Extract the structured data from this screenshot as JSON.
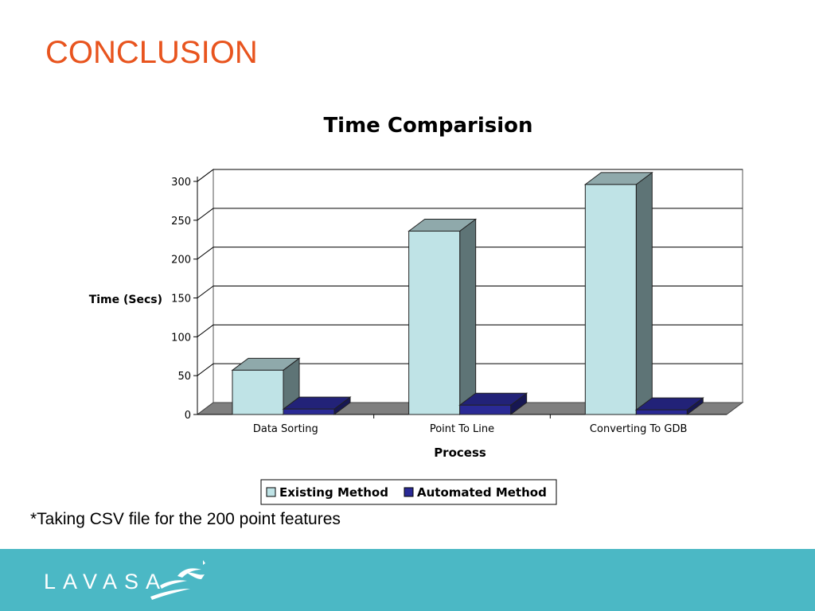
{
  "slide": {
    "title": "CONCLUSION",
    "footnote": "*Taking CSV file for the 200 point features",
    "logo_text": "LAVASA"
  },
  "colors": {
    "title": "#e8541e",
    "footer_band": "#4bb8c5",
    "existing_face": "#bfe3e6",
    "automated_face": "#2a2a96",
    "floor": "#7f7f7f",
    "side": "#5e7476"
  },
  "icons": {
    "logo": "birds-logo-icon"
  },
  "chart_data": {
    "type": "bar",
    "title": "Time Comparision",
    "xlabel": "Process",
    "ylabel": "Time (Secs)",
    "categories": [
      "Data Sorting",
      "Point To Line",
      "Converting To GDB"
    ],
    "series": [
      {
        "name": "Existing Method",
        "values": [
          57,
          236,
          296
        ],
        "color": "#bfe3e6"
      },
      {
        "name": "Automated Method",
        "values": [
          7,
          12,
          6
        ],
        "color": "#2a2a96"
      }
    ],
    "ylim": [
      0,
      300
    ],
    "yticks": [
      "0",
      "50",
      "100",
      "150",
      "200",
      "250",
      "300"
    ],
    "grid": true,
    "legend_position": "bottom",
    "style": "3d-column"
  }
}
